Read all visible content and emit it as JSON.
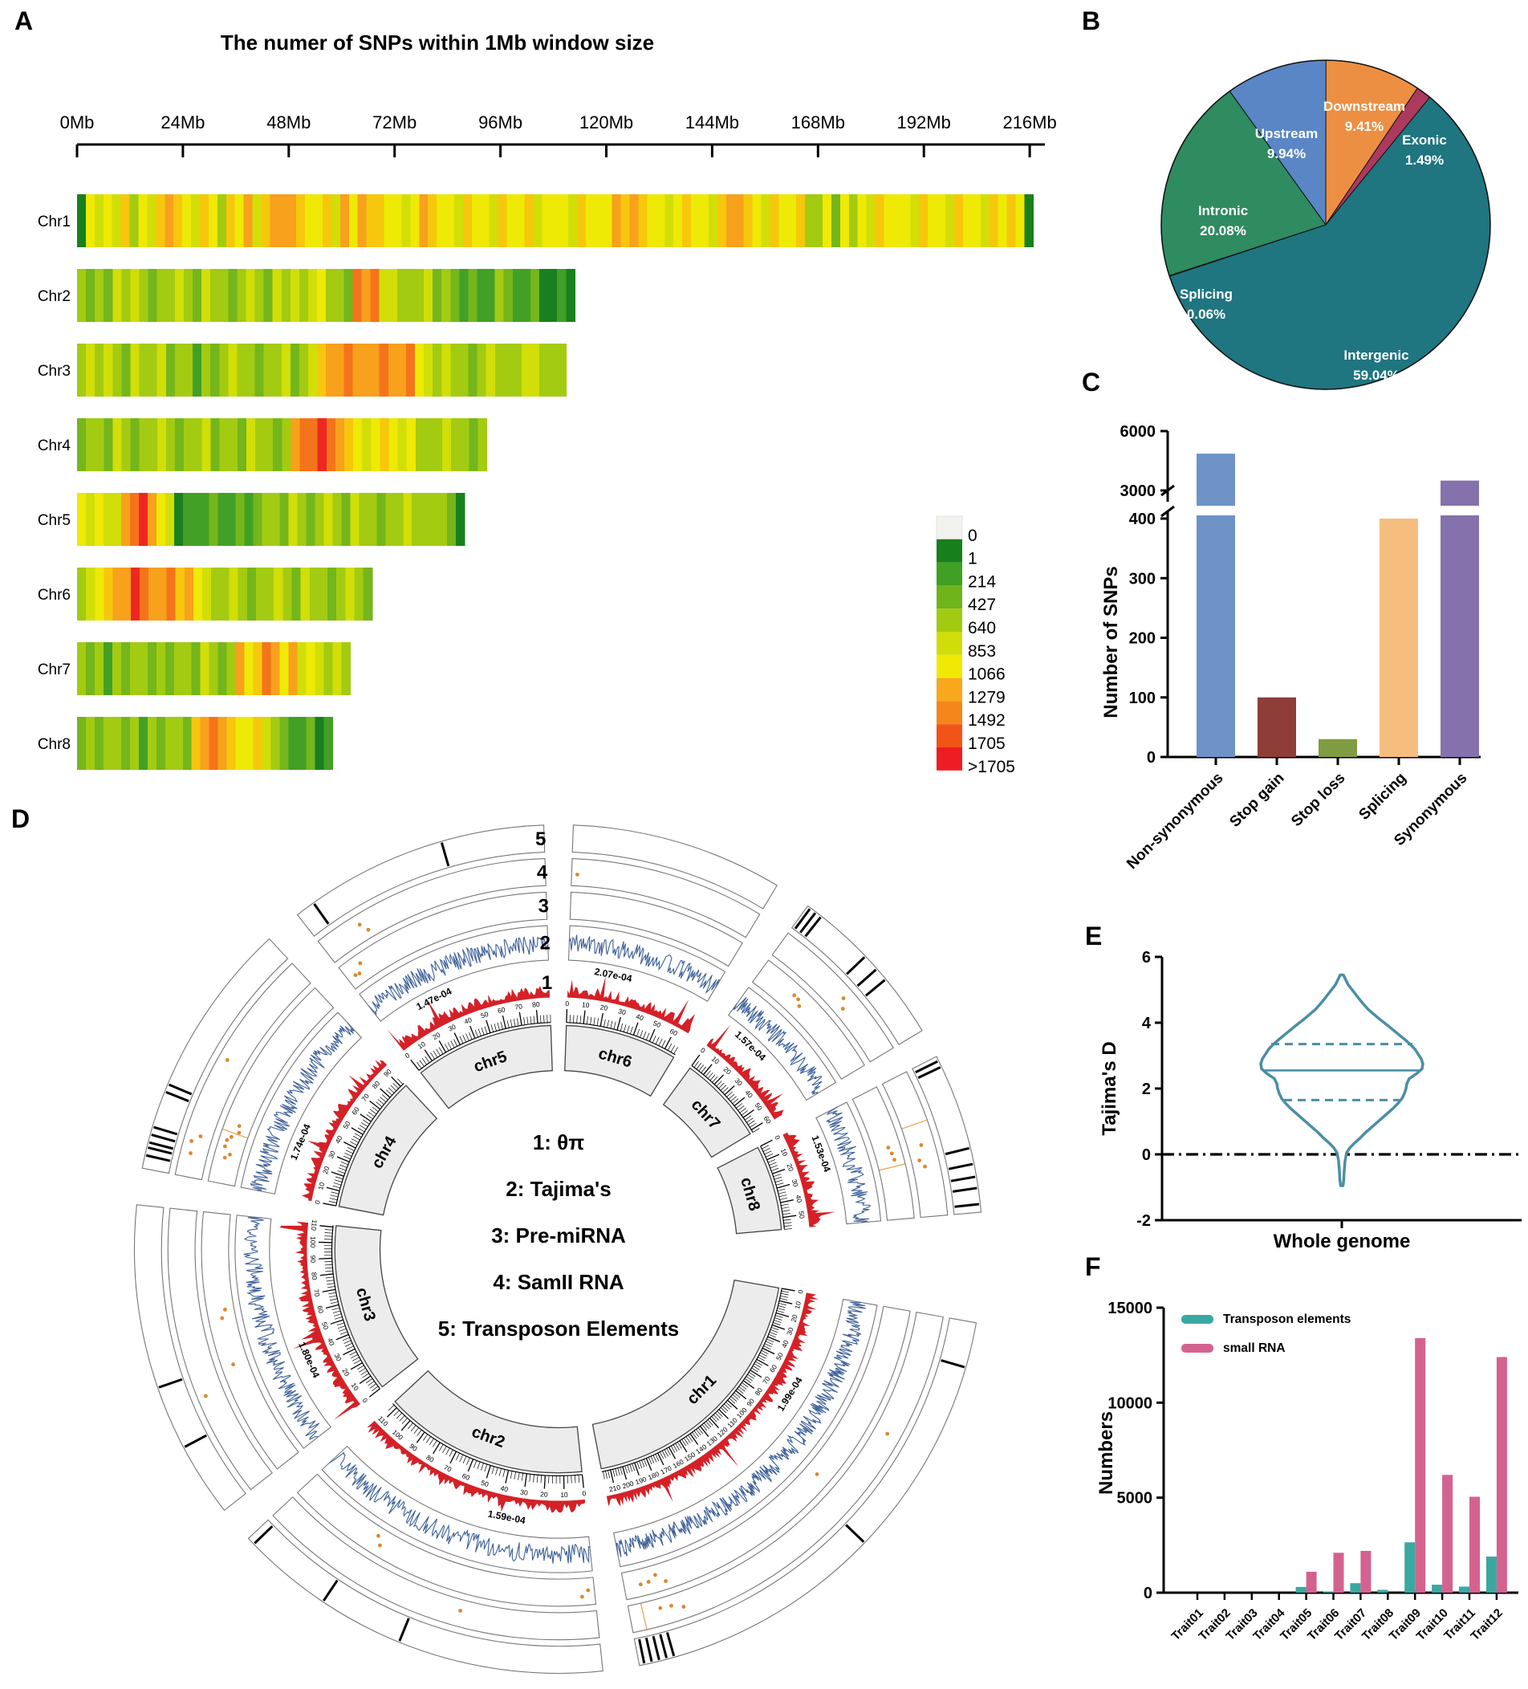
{
  "chart_data": {
    "panelA": {
      "letter": "A",
      "type": "heatmap",
      "title": "The numer of SNPs within 1Mb window size",
      "x_ticks": [
        "0Mb",
        "24Mb",
        "48Mb",
        "72Mb",
        "96Mb",
        "120Mb",
        "144Mb",
        "168Mb",
        "192Mb",
        "216Mb"
      ],
      "legend_values": [
        "0",
        "1",
        "214",
        "427",
        "640",
        "853",
        "1066",
        "1279",
        "1492",
        "1705",
        ">1705"
      ],
      "legend_colors": [
        "#f2f2ef",
        "#187f1d",
        "#3fa024",
        "#70b41b",
        "#a2ca11",
        "#d0dd08",
        "#f0e905",
        "#f7a81b",
        "#f5861b",
        "#f25418",
        "#ee1d23"
      ],
      "palette": {
        "0": "#f3f3f0",
        "1": "#18801e",
        "2": "#42a026",
        "3": "#74b61c",
        "4": "#a3cb11",
        "5": "#d2de08",
        "6": "#efe906",
        "7": "#f6c70d",
        "8": "#f7a11c",
        "9": "#f4741c",
        "a": "#ee2722"
      },
      "chromosomes": [
        {
          "name": "Chr1",
          "size_mb": 217,
          "pattern": "165657465787657647685788876675868776656876657665766756665766687876656766578876576674463646576665766576657 6761"
        },
        {
          "name": "Chr2",
          "size_mb": 113,
          "pattern": "43435454344543544345435454564439895544453432322432231121"
        },
        {
          "name": "Chr3",
          "size_mb": 111,
          "pattern": "4545435445344243454434453457889888988965454434544455444"
        },
        {
          "name": "Chr4",
          "size_mb": 93,
          "pattern": "344354344543445344354434899a987656765644454434"
        },
        {
          "name": "Chr5",
          "size_mb": 88,
          "pattern": "6565589a86512223223234435434543544344544443 1"
        },
        {
          "name": "Chr6",
          "size_mb": 67,
          "pattern": "456788a98897865445434454354434543"
        },
        {
          "name": "Chr7",
          "size_mb": 62,
          "pattern": "4342434434344354348679868565454"
        },
        {
          "name": "Chr8",
          "size_mb": 58,
          "pattern": "34344342434437898766754322312"
        }
      ]
    },
    "panelB": {
      "letter": "B",
      "type": "pie",
      "slices": [
        {
          "label": "Downstream",
          "pct": 9.41,
          "color": "#EC8F43",
          "lx": 360,
          "ly": 108
        },
        {
          "label": "Exonic",
          "pct": 1.49,
          "color": "#AC3A5E",
          "lx": 435,
          "ly": 150
        },
        {
          "label": "Intergenic",
          "pct": 59.04,
          "color": "#1F7580",
          "lx": 375,
          "ly": 418
        },
        {
          "label": "Splicing",
          "pct": 0.06,
          "color": "#10574d",
          "lx": 163,
          "ly": 342
        },
        {
          "label": "Intronic",
          "pct": 20.08,
          "color": "#2F8B60",
          "lx": 184,
          "ly": 238
        },
        {
          "label": "Upstream",
          "pct": 9.94,
          "color": "#5A86C5",
          "lx": 263,
          "ly": 142
        }
      ]
    },
    "panelC": {
      "letter": "C",
      "type": "bar",
      "ylabel": "Number of SNPs",
      "yticks_lower": [
        0,
        100,
        200,
        300,
        400
      ],
      "yticks_upper": [
        3000,
        6000
      ],
      "categories": [
        "Non-synonymous",
        "Stop gain",
        "Stop loss",
        "Splicing",
        "Synonymous"
      ],
      "values": [
        4860,
        100,
        30,
        400,
        3500
      ],
      "colors": [
        "#6f92c6",
        "#8f3d38",
        "#7f9c43",
        "#f6be7e",
        "#8571ab"
      ]
    },
    "panelD": {
      "letter": "D",
      "type": "circos",
      "center_legend": [
        "1: θπ",
        "2: Tajima's",
        "3: Pre-miRNA",
        "4: SamII RNA",
        "5: Transposon Elements"
      ],
      "track_numbers": [
        "5",
        "4",
        "3",
        "2",
        "1"
      ],
      "sectors": [
        {
          "name": "chr6",
          "a0": 2,
          "a1": 31,
          "size_mb": 67,
          "theta": "2.07e-04",
          "dots3": [],
          "dots4": [
            0.03
          ],
          "bars5": [],
          "lines3": [],
          "lines4": []
        },
        {
          "name": "chr7",
          "a0": 36,
          "a1": 59,
          "size_mb": 62,
          "theta": "1.57e-04",
          "dots3": [
            0.3,
            0.34,
            0.38
          ],
          "dots4": [
            0.55,
            0.6
          ],
          "bars5": [
            0.02,
            0.06,
            0.1,
            0.45,
            0.55,
            0.63
          ],
          "lines3": [],
          "lines4": []
        },
        {
          "name": "chr8",
          "a0": 63,
          "a1": 85,
          "size_mb": 58,
          "theta": "1.53e-04",
          "dots3": [
            0.45,
            0.5,
            0.55
          ],
          "dots4": [
            0.5,
            0.6,
            0.65
          ],
          "bars5": [
            0.03,
            0.07,
            0.6,
            0.7,
            0.78,
            0.85,
            0.95
          ],
          "lines3": [
            0.6
          ],
          "lines4": [
            0.35
          ]
        },
        {
          "name": "chr1",
          "a0": 100,
          "a1": 169,
          "size_mb": 217,
          "theta": "1.99e-04",
          "dots3": [
            0.45,
            0.9,
            0.92,
            0.94,
            0.96
          ],
          "dots4": [
            0.28,
            0.88,
            0.905,
            0.93
          ],
          "bars5": [
            0.09,
            0.49,
            0.93,
            0.945,
            0.96,
            0.975,
            0.99
          ],
          "lines3": [],
          "lines4": [
            0.97
          ]
        },
        {
          "name": "chr2",
          "a0": 174,
          "a1": 227,
          "size_mb": 113,
          "theta": "1.59e-04",
          "dots3": [
            0.02,
            0.04,
            0.7,
            0.72
          ],
          "dots4": [
            0.4
          ],
          "bars5": [
            0.53,
            0.75,
            0.98
          ],
          "lines3": [],
          "lines4": []
        },
        {
          "name": "chr3",
          "a0": 232,
          "a1": 276,
          "size_mb": 111,
          "theta": "1.80e-04",
          "dots3": [
            0.42,
            0.6,
            0.63
          ],
          "dots4": [
            0.35
          ],
          "bars5": [
            0.23,
            0.43
          ],
          "lines3": [],
          "lines4": []
        },
        {
          "name": "chr4",
          "a0": 281,
          "a1": 317,
          "size_mb": 93,
          "theta": "1.74e-04",
          "dots3": [
            0.12,
            0.14,
            0.17,
            0.2,
            0.22,
            0.25,
            0.28
          ],
          "dots4": [
            0.1,
            0.15,
            0.18,
            0.52
          ],
          "bars5": [
            0.05,
            0.08,
            0.1,
            0.13,
            0.16,
            0.3,
            0.33
          ],
          "lines3": [
            0.24
          ],
          "lines4": []
        },
        {
          "name": "chr5",
          "a0": 322,
          "a1": 358,
          "size_mb": 88,
          "theta": "1.47e-04",
          "dots3": [
            0.04,
            0.06,
            0.09
          ],
          "dots4": [
            0.18,
            0.2
          ],
          "bars5": [
            0.075,
            0.61
          ],
          "lines3": [],
          "lines4": []
        }
      ]
    },
    "panelE": {
      "letter": "E",
      "type": "violin",
      "ylabel": "Tajima's D",
      "xlabel": "Whole genome",
      "yticks": [
        -2,
        0,
        2,
        4,
        6
      ],
      "median": 2.55,
      "q1": 1.65,
      "q3": 3.35,
      "color": "#4b8ea6",
      "profile": [
        [
          5.45,
          2
        ],
        [
          5.15,
          8
        ],
        [
          4.9,
          16
        ],
        [
          4.65,
          24
        ],
        [
          4.4,
          33
        ],
        [
          4.15,
          45
        ],
        [
          3.9,
          58
        ],
        [
          3.7,
          68
        ],
        [
          3.5,
          78
        ],
        [
          3.35,
          85
        ],
        [
          3.2,
          91
        ],
        [
          3.05,
          95
        ],
        [
          2.9,
          99
        ],
        [
          2.75,
          101
        ],
        [
          2.6,
          100
        ],
        [
          2.45,
          93
        ],
        [
          2.3,
          84
        ],
        [
          2.15,
          81
        ],
        [
          2.0,
          80
        ],
        [
          1.85,
          78
        ],
        [
          1.7,
          75
        ],
        [
          1.55,
          70
        ],
        [
          1.4,
          64
        ],
        [
          1.25,
          57
        ],
        [
          1.1,
          50
        ],
        [
          0.95,
          43
        ],
        [
          0.8,
          36
        ],
        [
          0.65,
          29
        ],
        [
          0.5,
          23
        ],
        [
          0.35,
          16
        ],
        [
          0.2,
          10
        ],
        [
          0.05,
          6
        ],
        [
          -0.2,
          4
        ],
        [
          -0.5,
          3
        ],
        [
          -0.75,
          2.5
        ],
        [
          -0.95,
          1.5
        ]
      ]
    },
    "panelF": {
      "letter": "F",
      "type": "bar",
      "ylabel": "Numbers",
      "yticks": [
        0,
        5000,
        10000,
        15000
      ],
      "categories": [
        "Trait01",
        "Trait02",
        "Trait03",
        "Trait04",
        "Trait05",
        "Trait06",
        "Trait07",
        "Trait08",
        "Trait09",
        "Trait10",
        "Trait11",
        "Trait12"
      ],
      "series": [
        {
          "name": "Transposon elements",
          "color": "#3aa8a2",
          "values": [
            0,
            0,
            0,
            0,
            300,
            60,
            500,
            150,
            2650,
            420,
            320,
            1900
          ]
        },
        {
          "name": "small RNA",
          "color": "#d4628f",
          "values": [
            0,
            0,
            0,
            0,
            1100,
            2100,
            2200,
            0,
            13400,
            6200,
            5050,
            12400
          ]
        }
      ]
    }
  }
}
